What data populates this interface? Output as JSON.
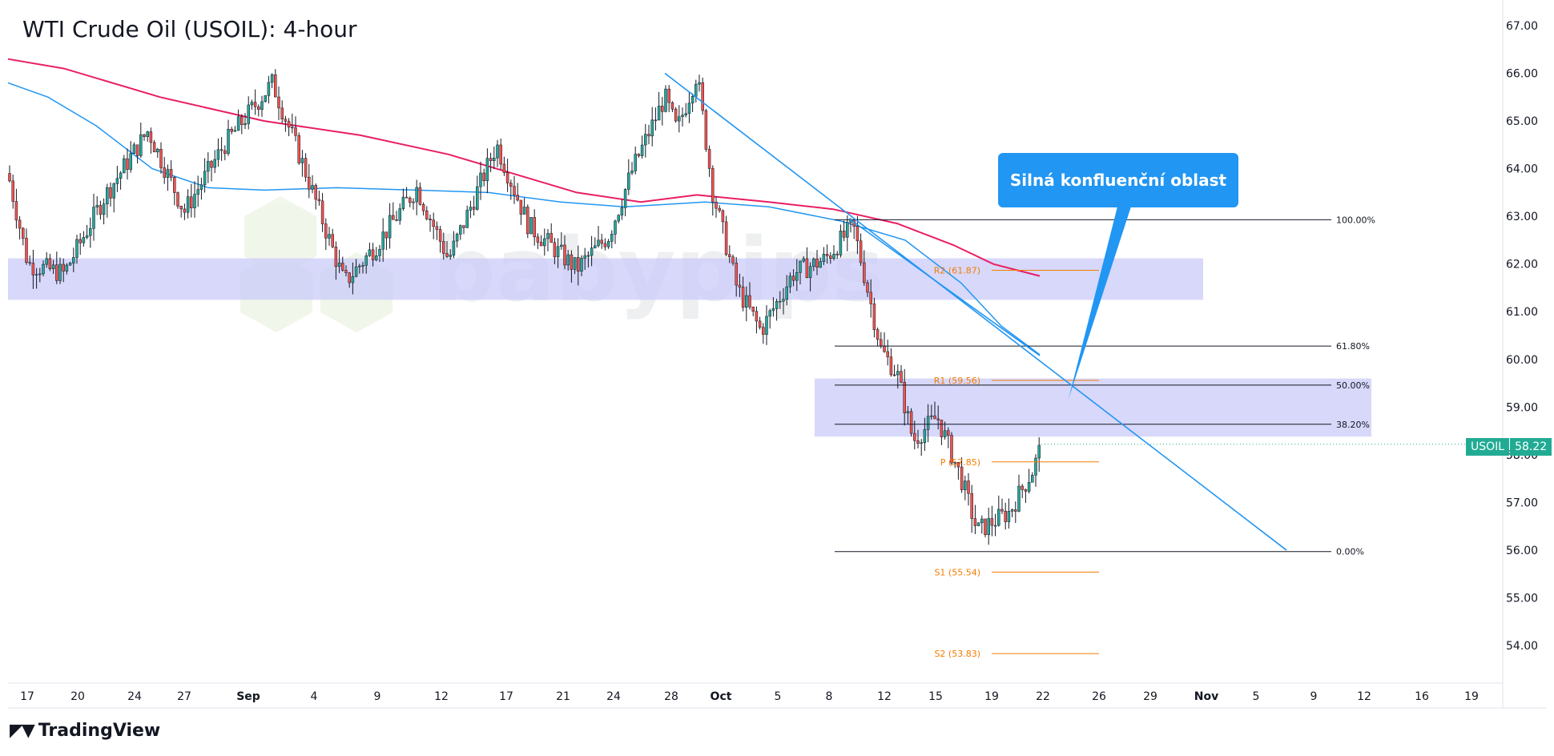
{
  "title": "WTI Crude Oil (USOIL): 4-hour",
  "brand": "TradingView",
  "watermark": "babypips",
  "callout": "Silná konfluenční oblast",
  "symbol_tag": {
    "symbol": "USOIL",
    "price": "58.22",
    "color": "#22ab94"
  },
  "colors": {
    "ema_long": "#e91e63",
    "ema_short": "#2196f3",
    "trendline": "#2196f3",
    "zone": "#c9cbf8",
    "pivot": "#f57c00",
    "fib": "#131722",
    "bull": "#26a69a",
    "bear": "#ef5350"
  },
  "chart_data": {
    "type": "candlestick",
    "ylim": [
      53.4,
      67.4
    ],
    "y_ticks": [
      "67.00",
      "66.00",
      "65.00",
      "64.00",
      "63.00",
      "62.00",
      "61.00",
      "60.00",
      "59.00",
      "58.00",
      "57.00",
      "56.00",
      "55.00",
      "54.00"
    ],
    "x_ticks": [
      "17",
      "20",
      "24",
      "27",
      "Sep",
      "4",
      "9",
      "12",
      "17",
      "21",
      "24",
      "28",
      "Oct",
      "5",
      "8",
      "12",
      "15",
      "19",
      "22",
      "26",
      "29",
      "Nov",
      "5",
      "9",
      "12",
      "16",
      "19"
    ],
    "fib_levels": [
      {
        "label": "100.00%",
        "price": 62.93
      },
      {
        "label": "61.80%",
        "price": 60.28
      },
      {
        "label": "50.00%",
        "price": 59.46
      },
      {
        "label": "38.20%",
        "price": 58.64
      },
      {
        "label": "0.00%",
        "price": 55.97
      }
    ],
    "pivots": [
      {
        "label": "R2 (61.87)",
        "price": 61.87
      },
      {
        "label": "R1 (59.56)",
        "price": 59.56
      },
      {
        "label": "P (57.85)",
        "price": 57.85
      },
      {
        "label": "S1 (55.54)",
        "price": 55.54
      },
      {
        "label": "S2 (53.83)",
        "price": 53.83
      }
    ],
    "zones": [
      {
        "from": 61.25,
        "to": 62.12
      },
      {
        "from": 58.38,
        "to": 59.6
      }
    ],
    "last_price": 58.22,
    "trendline": {
      "from": 66.0,
      "to": 56.0
    }
  }
}
